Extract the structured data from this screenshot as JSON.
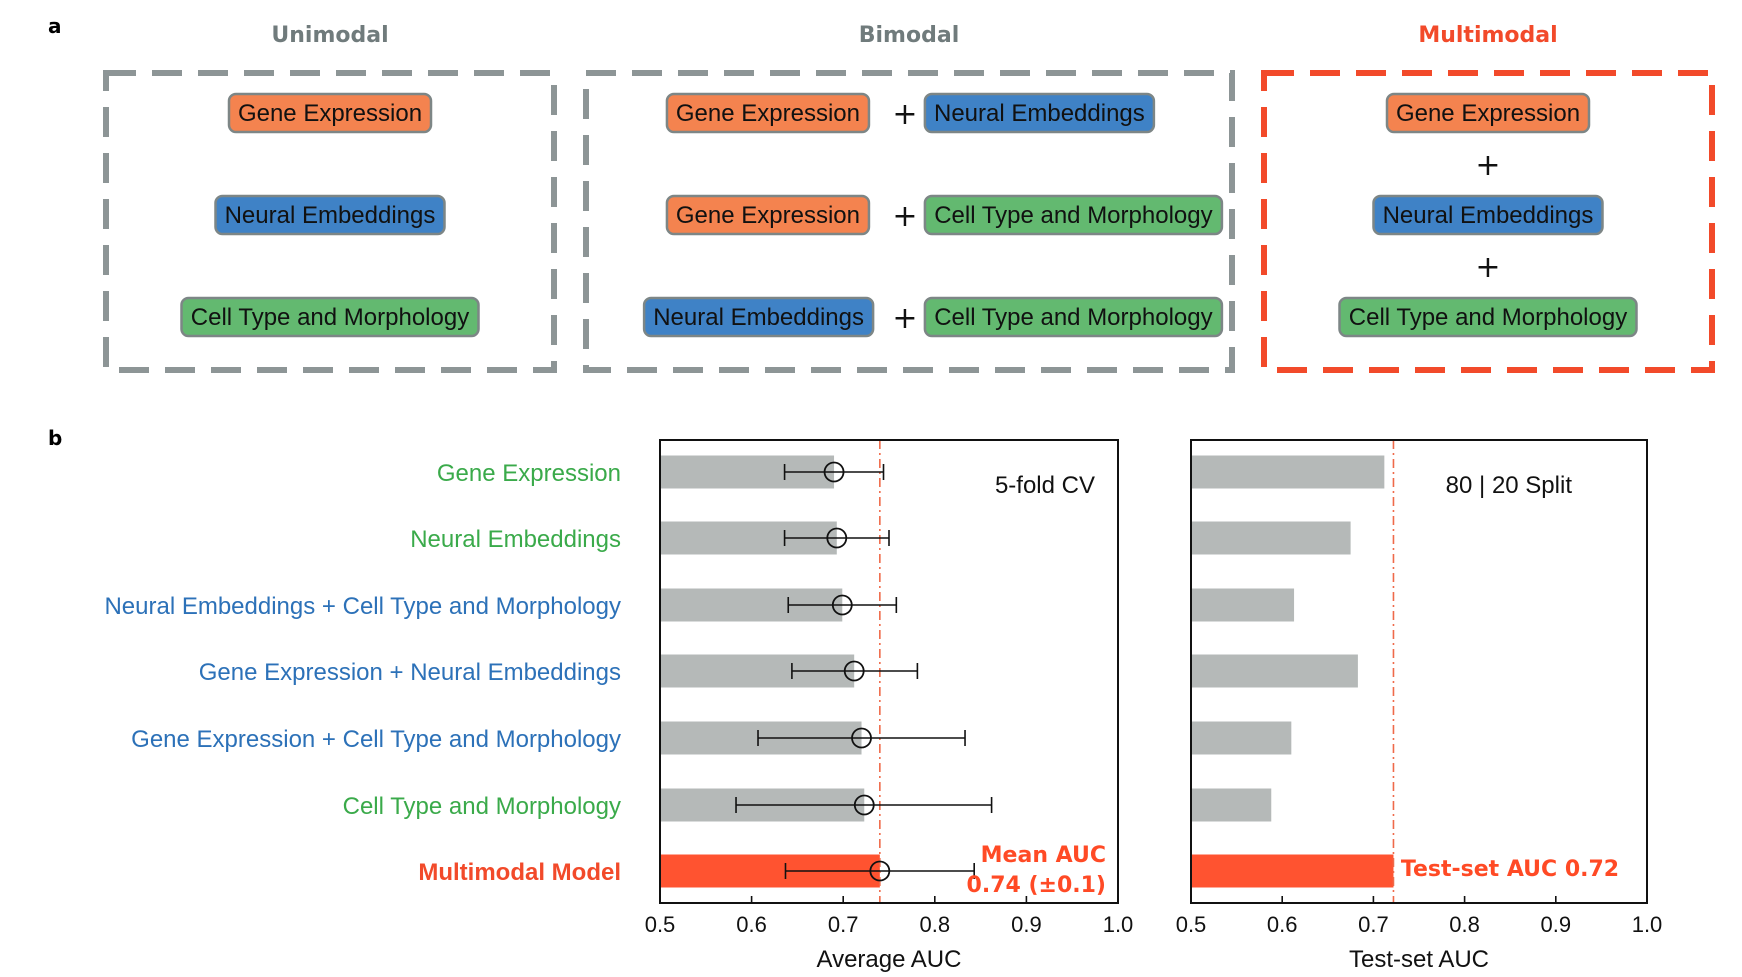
{
  "panel_a": {
    "letter": "a",
    "groups": [
      {
        "title": "Unimodal",
        "title_color": "#707b7c",
        "border_color": "#8d9596",
        "rows": [
          {
            "items": [
              "Gene Expression"
            ]
          },
          {
            "items": [
              "Neural Embeddings"
            ]
          },
          {
            "items": [
              "Cell Type and Morphology"
            ]
          }
        ]
      },
      {
        "title": "Bimodal",
        "title_color": "#707b7c",
        "border_color": "#8d9596",
        "rows": [
          {
            "items": [
              "Gene Expression",
              "Neural Embeddings"
            ]
          },
          {
            "items": [
              "Gene Expression",
              "Cell Type and Morphology"
            ]
          },
          {
            "items": [
              "Neural Embeddings",
              "Cell Type and Morphology"
            ]
          }
        ]
      },
      {
        "title": "Multimodal",
        "title_color": "#f24a2a",
        "border_color": "#f24a2a",
        "rows": [
          {
            "items": [
              "Gene Expression"
            ]
          },
          {
            "items": [
              "Neural Embeddings"
            ]
          },
          {
            "items": [
              "Cell Type and Morphology"
            ]
          }
        ]
      }
    ],
    "plus_symbol": "+",
    "modality_colors": {
      "Gene Expression": "#f4834f",
      "Neural Embeddings": "#3f82c6",
      "Cell Type and Morphology": "#63b970"
    }
  },
  "panel_b": {
    "letter": "b",
    "row_labels": [
      {
        "text": "Gene Expression",
        "color": "#3aaa4a",
        "bold": false
      },
      {
        "text": "Neural Embeddings",
        "color": "#3aaa4a",
        "bold": false
      },
      {
        "text": "Neural Embeddings + Cell Type and Morphology",
        "color": "#2c71b8",
        "bold": false
      },
      {
        "text": "Gene Expression + Neural Embeddings",
        "color": "#2c71b8",
        "bold": false
      },
      {
        "text": "Gene Expression + Cell Type and Morphology",
        "color": "#2c71b8",
        "bold": false
      },
      {
        "text": "Cell Type and Morphology",
        "color": "#3aaa4a",
        "bold": false
      },
      {
        "text": "Multimodal Model",
        "color": "#f24a2a",
        "bold": true
      }
    ]
  },
  "chart_data": [
    {
      "type": "bar",
      "orientation": "horizontal",
      "title": "",
      "inner_label": "5-fold CV",
      "xlabel": "Average AUC",
      "ylabel": "",
      "xlim": [
        0.5,
        1.0
      ],
      "xticks": [
        "0.5",
        "0.6",
        "0.7",
        "0.8",
        "0.9",
        "1.0"
      ],
      "categories": [
        "Gene Expression",
        "Neural Embeddings",
        "Neural Embeddings + Cell Type and Morphology",
        "Gene Expression + Neural Embeddings",
        "Gene Expression + Cell Type and Morphology",
        "Cell Type and Morphology",
        "Multimodal Model"
      ],
      "values": [
        0.69,
        0.693,
        0.699,
        0.712,
        0.72,
        0.723,
        0.74
      ],
      "error_low": [
        0.636,
        0.636,
        0.64,
        0.644,
        0.607,
        0.583,
        0.637
      ],
      "error_high": [
        0.744,
        0.75,
        0.758,
        0.781,
        0.833,
        0.862,
        0.843
      ],
      "bar_colors": [
        "#b5b9b8",
        "#b5b9b8",
        "#b5b9b8",
        "#b5b9b8",
        "#b5b9b8",
        "#b5b9b8",
        "#ff5330"
      ],
      "reference_line": 0.74,
      "reference_line_color": "#ef6a4a",
      "annotation": [
        "Mean AUC",
        "0.74 (±0.1)"
      ]
    },
    {
      "type": "bar",
      "orientation": "horizontal",
      "title": "",
      "inner_label": "80 | 20 Split",
      "xlabel": "Test-set AUC",
      "ylabel": "",
      "xlim": [
        0.5,
        1.0
      ],
      "xticks": [
        "0.5",
        "0.6",
        "0.7",
        "0.8",
        "0.9",
        "1.0"
      ],
      "categories": [
        "Gene Expression",
        "Neural Embeddings",
        "Neural Embeddings + Cell Type and Morphology",
        "Gene Expression + Neural Embeddings",
        "Gene Expression + Cell Type and Morphology",
        "Cell Type and Morphology",
        "Multimodal Model"
      ],
      "values": [
        0.712,
        0.675,
        0.613,
        0.683,
        0.61,
        0.588,
        0.722
      ],
      "bar_colors": [
        "#b5b9b8",
        "#b5b9b8",
        "#b5b9b8",
        "#b5b9b8",
        "#b5b9b8",
        "#b5b9b8",
        "#ff5330"
      ],
      "reference_line": 0.722,
      "reference_line_color": "#ef6a4a",
      "annotation": [
        "Test-set AUC 0.72"
      ]
    }
  ]
}
